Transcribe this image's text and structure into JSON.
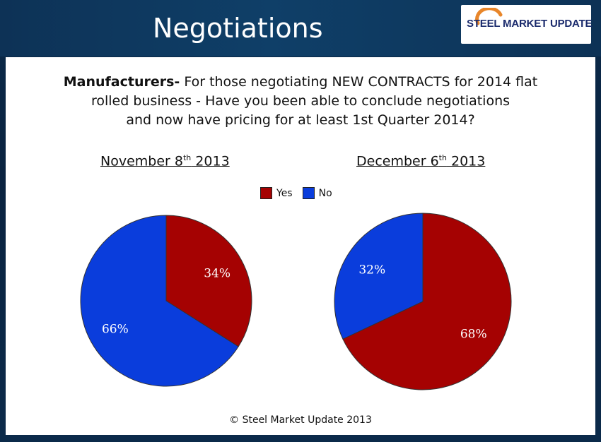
{
  "slide": {
    "title": "Negotiations",
    "logo_text_1": "STEEL",
    "logo_text_2": "MARKET UPDATE"
  },
  "question": {
    "lead": "Manufacturers-",
    "line1_rest": " For those negotiating NEW CONTRACTS for 2014 flat",
    "line2": "rolled business - Have you been able to conclude negotiations",
    "line3": "and now have pricing for at least 1st Quarter 2014?"
  },
  "footer": "© Steel Market Update 2013",
  "colors": {
    "yes": "#a50202",
    "no": "#0a3ddc"
  },
  "chart_data": [
    {
      "type": "pie",
      "title_main": "November 8",
      "title_sup": "th",
      "title_year": " 2013",
      "legend": [
        "Yes",
        "No"
      ],
      "slices": [
        {
          "label": "Yes",
          "value": 34,
          "display": "34%"
        },
        {
          "label": "No",
          "value": 66,
          "display": "66%"
        }
      ]
    },
    {
      "type": "pie",
      "title_main": "December 6",
      "title_sup": "th",
      "title_year": " 2013",
      "legend": [
        "Yes",
        "No"
      ],
      "slices": [
        {
          "label": "Yes",
          "value": 68,
          "display": "68%"
        },
        {
          "label": "No",
          "value": 32,
          "display": "32%"
        }
      ]
    }
  ]
}
